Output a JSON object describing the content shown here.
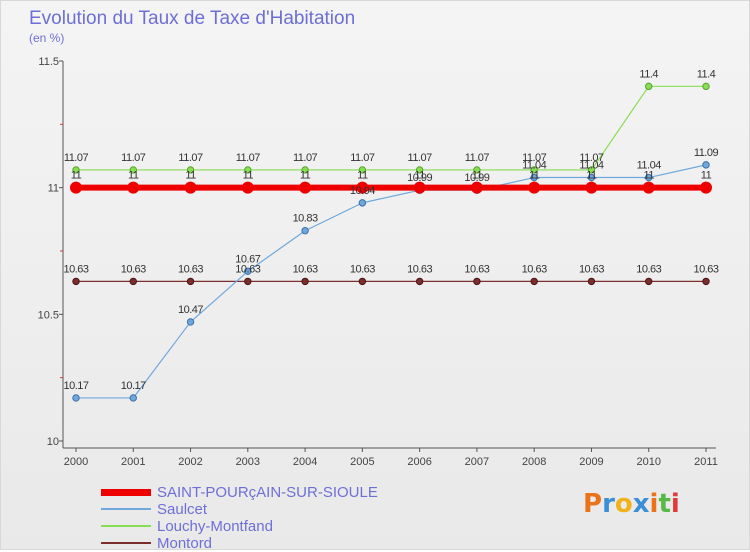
{
  "header": {
    "title": "Evolution du Taux de Taxe d'Habitation",
    "subtitle": "(en %)"
  },
  "chart_data": {
    "type": "line",
    "title": "Evolution du Taux de Taxe d'Habitation",
    "ylabel": "(en %)",
    "xlabel": "",
    "categories": [
      "2000",
      "2001",
      "2002",
      "2003",
      "2004",
      "2005",
      "2006",
      "2007",
      "2008",
      "2009",
      "2010",
      "2011"
    ],
    "ylim": [
      10,
      11.5
    ],
    "yticks": [
      "10",
      "10.5",
      "11",
      "11.5"
    ],
    "grid": false,
    "series": [
      {
        "name": "SAINT-POURçAIN-SUR-SIOULE",
        "color": "#ee0000",
        "values": [
          11,
          11,
          11,
          11,
          11,
          11,
          11,
          11,
          11,
          11,
          11,
          11
        ],
        "labels": [
          "11",
          "11",
          "11",
          "11",
          "11",
          "11",
          "11",
          "11",
          "11",
          "11",
          "11",
          "11"
        ]
      },
      {
        "name": "Saulcet",
        "color": "#6fa8dc",
        "values": [
          10.17,
          10.17,
          10.47,
          10.67,
          10.83,
          10.94,
          10.99,
          10.99,
          11.04,
          11.04,
          11.04,
          11.09
        ],
        "labels": [
          "10.17",
          "10.17",
          "10.47",
          "10.67",
          "10.83",
          "10.94",
          "10.99",
          "10.99",
          "11.04",
          "11.04",
          "11.04",
          "11.09"
        ]
      },
      {
        "name": "Louchy-Montfand",
        "color": "#88dd55",
        "values": [
          11.07,
          11.07,
          11.07,
          11.07,
          11.07,
          11.07,
          11.07,
          11.07,
          11.07,
          11.07,
          11.4,
          11.4
        ],
        "labels": [
          "11.07",
          "11.07",
          "11.07",
          "11.07",
          "11.07",
          "11.07",
          "11.07",
          "11.07",
          "11.07",
          "11.07",
          "11.4",
          "11.4"
        ]
      },
      {
        "name": "Montord",
        "color": "#7a2e2e",
        "values": [
          10.63,
          10.63,
          10.63,
          10.63,
          10.63,
          10.63,
          10.63,
          10.63,
          10.63,
          10.63,
          10.63,
          10.63
        ],
        "labels": [
          "10.63",
          "10.63",
          "10.63",
          "10.63",
          "10.63",
          "10.63",
          "10.63",
          "10.63",
          "10.63",
          "10.63",
          "10.63",
          "10.63"
        ]
      }
    ],
    "legend": [
      "SAINT-POURçAIN-SUR-SIOULE",
      "Saulcet",
      "Louchy-Montfand",
      "Montord"
    ],
    "legend_position": "bottom-left"
  },
  "branding": {
    "logo_text": "Proxiti"
  }
}
